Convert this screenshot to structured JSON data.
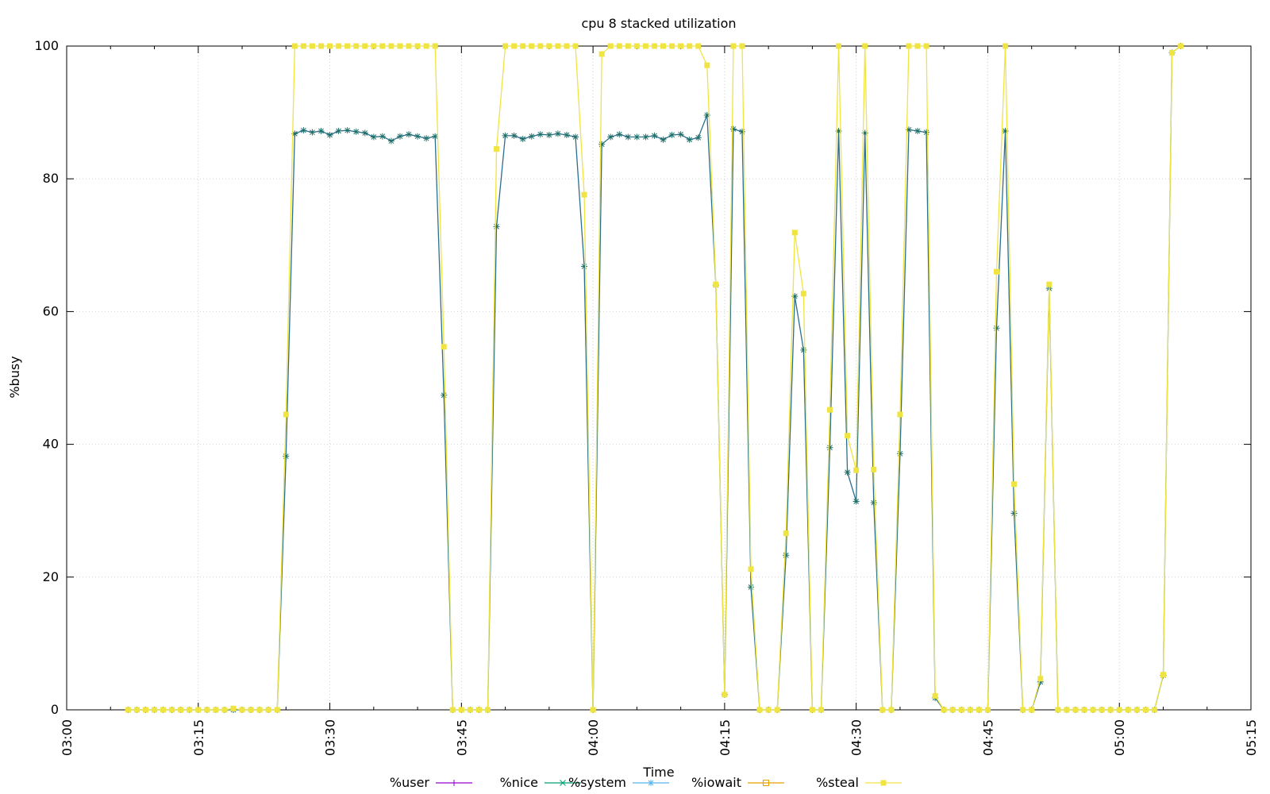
{
  "chart_data": {
    "type": "line",
    "title": "cpu 8 stacked utilization",
    "xlabel": "Time",
    "ylabel": "%busy",
    "ylim": [
      0,
      100
    ],
    "xlim": [
      "03:00",
      "05:15"
    ],
    "yticks": [
      0,
      20,
      40,
      60,
      80,
      100
    ],
    "xticks": [
      "03:00",
      "03:15",
      "03:30",
      "03:45",
      "04:00",
      "04:15",
      "04:30",
      "04:45",
      "05:00",
      "05:15"
    ],
    "grid": true,
    "legend_position": "bottom",
    "series": [
      {
        "name": "%user",
        "color": "#9400d3",
        "marker": "plus",
        "values": []
      },
      {
        "name": "%nice",
        "color": "#009e73",
        "marker": "x",
        "values": []
      },
      {
        "name": "%system",
        "color": "#56b4e9",
        "marker": "star",
        "points": [
          [
            "03:07",
            0
          ],
          [
            "03:08",
            0
          ],
          [
            "03:09",
            0
          ],
          [
            "03:10",
            0
          ],
          [
            "03:11",
            0
          ],
          [
            "03:12",
            0
          ],
          [
            "03:13",
            0
          ],
          [
            "03:14",
            0
          ],
          [
            "03:15",
            0
          ],
          [
            "03:16",
            0
          ],
          [
            "03:17",
            0
          ],
          [
            "03:18",
            0
          ],
          [
            "03:19",
            0
          ],
          [
            "03:20",
            0
          ],
          [
            "03:21",
            0
          ],
          [
            "03:22",
            0
          ],
          [
            "03:23",
            0
          ],
          [
            "03:24",
            0
          ],
          [
            "03:25",
            38.2
          ],
          [
            "03:26",
            86.8
          ],
          [
            "03:27",
            87.3
          ],
          [
            "03:28",
            87.0
          ],
          [
            "03:29",
            87.2
          ],
          [
            "03:30",
            86.6
          ],
          [
            "03:31",
            87.2
          ],
          [
            "03:32",
            87.3
          ],
          [
            "03:33",
            87.1
          ],
          [
            "03:34",
            86.9
          ],
          [
            "03:35",
            86.3
          ],
          [
            "03:36",
            86.4
          ],
          [
            "03:37",
            85.7
          ],
          [
            "03:38",
            86.4
          ],
          [
            "03:39",
            86.7
          ],
          [
            "03:40",
            86.4
          ],
          [
            "03:41",
            86.1
          ],
          [
            "03:42",
            86.4
          ],
          [
            "03:43",
            47.4
          ],
          [
            "03:44",
            0
          ],
          [
            "03:45",
            0
          ],
          [
            "03:46",
            0
          ],
          [
            "03:47",
            0
          ],
          [
            "03:48",
            0
          ],
          [
            "03:49",
            72.8
          ],
          [
            "03:50",
            86.5
          ],
          [
            "03:51",
            86.5
          ],
          [
            "03:52",
            86.0
          ],
          [
            "03:53",
            86.4
          ],
          [
            "03:54",
            86.7
          ],
          [
            "03:55",
            86.6
          ],
          [
            "03:56",
            86.8
          ],
          [
            "03:57",
            86.6
          ],
          [
            "03:58",
            86.3
          ],
          [
            "03:59",
            66.8
          ],
          [
            "04:00",
            0
          ],
          [
            "04:01",
            85.2
          ],
          [
            "04:02",
            86.3
          ],
          [
            "04:03",
            86.7
          ],
          [
            "04:04",
            86.3
          ],
          [
            "04:05",
            86.3
          ],
          [
            "04:06",
            86.3
          ],
          [
            "04:07",
            86.5
          ],
          [
            "04:08",
            85.9
          ],
          [
            "04:09",
            86.6
          ],
          [
            "04:10",
            86.7
          ],
          [
            "04:11",
            85.9
          ],
          [
            "04:12",
            86.2
          ],
          [
            "04:13",
            89.6
          ],
          [
            "04:14",
            64.0
          ],
          [
            "04:15",
            2.3
          ],
          [
            "04:16",
            87.5
          ],
          [
            "04:17",
            87.1
          ],
          [
            "04:18",
            18.5
          ],
          [
            "04:19",
            0
          ],
          [
            "04:20",
            0
          ],
          [
            "04:21",
            0
          ],
          [
            "04:22",
            23.3
          ],
          [
            "04:23",
            62.3
          ],
          [
            "04:24",
            54.2
          ],
          [
            "04:25",
            0
          ],
          [
            "04:26",
            0
          ],
          [
            "04:27",
            39.5
          ],
          [
            "04:28",
            87.2
          ],
          [
            "04:29",
            35.8
          ],
          [
            "04:30",
            31.4
          ],
          [
            "04:31",
            86.9
          ],
          [
            "04:32",
            31.2
          ],
          [
            "04:33",
            0
          ],
          [
            "04:34",
            0
          ],
          [
            "04:35",
            38.6
          ],
          [
            "04:36",
            87.4
          ],
          [
            "04:37",
            87.2
          ],
          [
            "04:38",
            87.0
          ],
          [
            "04:39",
            1.8
          ],
          [
            "04:40",
            0
          ],
          [
            "04:41",
            0
          ],
          [
            "04:42",
            0
          ],
          [
            "04:43",
            0
          ],
          [
            "04:44",
            0
          ],
          [
            "04:45",
            0
          ],
          [
            "04:46",
            57.5
          ],
          [
            "04:47",
            87.2
          ],
          [
            "04:48",
            29.6
          ],
          [
            "04:49",
            0
          ],
          [
            "04:50",
            0
          ],
          [
            "04:51",
            4.2
          ],
          [
            "04:52",
            63.5
          ],
          [
            "04:53",
            0
          ],
          [
            "04:54",
            0
          ],
          [
            "04:55",
            0
          ],
          [
            "04:56",
            0
          ],
          [
            "04:57",
            0
          ],
          [
            "04:58",
            0
          ],
          [
            "04:59",
            0
          ],
          [
            "05:00",
            0
          ],
          [
            "05:01",
            0
          ],
          [
            "05:02",
            0
          ],
          [
            "05:03",
            0
          ],
          [
            "05:04",
            0
          ],
          [
            "05:05",
            5.2
          ],
          [
            "05:06",
            99.0
          ],
          [
            "05:07",
            100
          ]
        ]
      },
      {
        "name": "%iowait",
        "color": "#e69f00",
        "marker": "square",
        "values": []
      },
      {
        "name": "%steal",
        "color": "#f0e442",
        "marker": "filled-square",
        "points": [
          [
            "03:07",
            0
          ],
          [
            "03:08",
            0
          ],
          [
            "03:09",
            0
          ],
          [
            "03:10",
            0
          ],
          [
            "03:11",
            0
          ],
          [
            "03:12",
            0
          ],
          [
            "03:13",
            0
          ],
          [
            "03:14",
            0
          ],
          [
            "03:15",
            0
          ],
          [
            "03:16",
            0
          ],
          [
            "03:17",
            0
          ],
          [
            "03:18",
            0
          ],
          [
            "03:19",
            0.2
          ],
          [
            "03:20",
            0
          ],
          [
            "03:21",
            0
          ],
          [
            "03:22",
            0
          ],
          [
            "03:23",
            0
          ],
          [
            "03:24",
            0
          ],
          [
            "03:25",
            44.5
          ],
          [
            "03:26",
            100
          ],
          [
            "03:27",
            100
          ],
          [
            "03:28",
            100
          ],
          [
            "03:29",
            100
          ],
          [
            "03:30",
            100
          ],
          [
            "03:31",
            100
          ],
          [
            "03:32",
            100
          ],
          [
            "03:33",
            100
          ],
          [
            "03:34",
            100
          ],
          [
            "03:35",
            100
          ],
          [
            "03:36",
            100
          ],
          [
            "03:37",
            100
          ],
          [
            "03:38",
            100
          ],
          [
            "03:39",
            100
          ],
          [
            "03:40",
            100
          ],
          [
            "03:41",
            100
          ],
          [
            "03:42",
            100
          ],
          [
            "03:43",
            54.7
          ],
          [
            "03:44",
            0
          ],
          [
            "03:45",
            0
          ],
          [
            "03:46",
            0
          ],
          [
            "03:47",
            0
          ],
          [
            "03:48",
            0
          ],
          [
            "03:49",
            84.5
          ],
          [
            "03:50",
            100
          ],
          [
            "03:51",
            100
          ],
          [
            "03:52",
            100
          ],
          [
            "03:53",
            100
          ],
          [
            "03:54",
            100
          ],
          [
            "03:55",
            100
          ],
          [
            "03:56",
            100
          ],
          [
            "03:57",
            100
          ],
          [
            "03:58",
            100
          ],
          [
            "03:59",
            77.6
          ],
          [
            "04:00",
            0
          ],
          [
            "04:01",
            98.8
          ],
          [
            "04:02",
            100
          ],
          [
            "04:03",
            100
          ],
          [
            "04:04",
            100
          ],
          [
            "04:05",
            100
          ],
          [
            "04:06",
            100
          ],
          [
            "04:07",
            100
          ],
          [
            "04:08",
            100
          ],
          [
            "04:09",
            100
          ],
          [
            "04:10",
            100
          ],
          [
            "04:11",
            100
          ],
          [
            "04:12",
            100
          ],
          [
            "04:13",
            97.1
          ],
          [
            "04:14",
            64.1
          ],
          [
            "04:15",
            2.3
          ],
          [
            "04:16",
            100
          ],
          [
            "04:17",
            100
          ],
          [
            "04:18",
            21.2
          ],
          [
            "04:19",
            0
          ],
          [
            "04:20",
            0
          ],
          [
            "04:21",
            0
          ],
          [
            "04:22",
            26.6
          ],
          [
            "04:23",
            71.9
          ],
          [
            "04:24",
            62.7
          ],
          [
            "04:25",
            0
          ],
          [
            "04:26",
            0
          ],
          [
            "04:27",
            45.2
          ],
          [
            "04:28",
            100
          ],
          [
            "04:29",
            41.3
          ],
          [
            "04:30",
            36.1
          ],
          [
            "04:31",
            100
          ],
          [
            "04:32",
            36.2
          ],
          [
            "04:33",
            0
          ],
          [
            "04:34",
            0
          ],
          [
            "04:35",
            44.5
          ],
          [
            "04:36",
            100
          ],
          [
            "04:37",
            100
          ],
          [
            "04:38",
            100
          ],
          [
            "04:39",
            2.1
          ],
          [
            "04:40",
            0
          ],
          [
            "04:41",
            0
          ],
          [
            "04:42",
            0
          ],
          [
            "04:43",
            0
          ],
          [
            "04:44",
            0
          ],
          [
            "04:45",
            0
          ],
          [
            "04:46",
            66.0
          ],
          [
            "04:47",
            100
          ],
          [
            "04:48",
            34.0
          ],
          [
            "04:49",
            0
          ],
          [
            "04:50",
            0
          ],
          [
            "04:51",
            4.7
          ],
          [
            "04:52",
            64.1
          ],
          [
            "04:53",
            0
          ],
          [
            "04:54",
            0
          ],
          [
            "04:55",
            0
          ],
          [
            "04:56",
            0
          ],
          [
            "04:57",
            0
          ],
          [
            "04:58",
            0
          ],
          [
            "04:59",
            0
          ],
          [
            "05:00",
            0
          ],
          [
            "05:01",
            0
          ],
          [
            "05:02",
            0
          ],
          [
            "05:03",
            0
          ],
          [
            "05:04",
            0
          ],
          [
            "05:05",
            5.3
          ],
          [
            "05:06",
            99.0
          ],
          [
            "05:07",
            100
          ]
        ]
      }
    ]
  }
}
